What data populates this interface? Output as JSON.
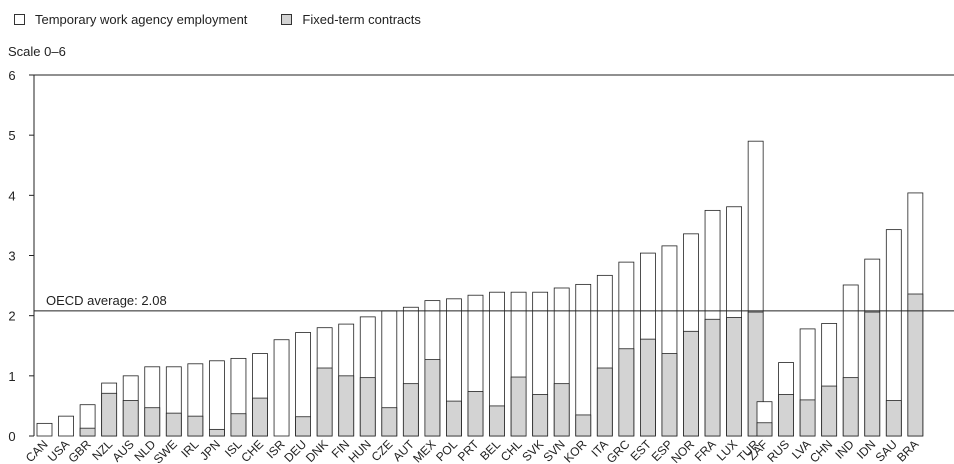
{
  "legend": {
    "agency_label": "Temporary work agency employment",
    "fixed_label": "Fixed-term contracts",
    "agency_color": "#ffffff",
    "fixed_color": "#d3d3d3"
  },
  "scale_label": "Scale 0–6",
  "reference_line": {
    "label": "OECD average: 2.08",
    "value": 2.08
  },
  "chart_data": {
    "type": "bar",
    "stacked": true,
    "ylim": [
      0,
      6
    ],
    "yticks": [
      0,
      1,
      2,
      3,
      4,
      5,
      6
    ],
    "groups": [
      {
        "categories": [
          "CAN",
          "USA",
          "GBR",
          "NZL",
          "AUS",
          "NLD",
          "SWE",
          "IRL",
          "JPN",
          "ISL",
          "CHE",
          "ISR",
          "DEU",
          "DNK",
          "FIN",
          "HUN",
          "CZE",
          "AUT",
          "MEX",
          "POL",
          "PRT",
          "BEL",
          "CHL",
          "SVK",
          "SVN",
          "KOR",
          "ITA",
          "GRC",
          "EST",
          "ESP",
          "NOR",
          "FRA",
          "LUX",
          "TUR"
        ],
        "totals": [
          0.21,
          0.33,
          0.52,
          0.88,
          1.0,
          1.15,
          1.15,
          1.2,
          1.25,
          1.29,
          1.37,
          1.6,
          1.72,
          1.8,
          1.86,
          1.98,
          2.08,
          2.14,
          2.25,
          2.28,
          2.34,
          2.39,
          2.39,
          2.39,
          2.46,
          2.52,
          2.67,
          2.89,
          3.04,
          3.16,
          3.36,
          3.75,
          3.81,
          4.9
        ]
      },
      {
        "categories": [
          "ZAF",
          "RUS",
          "LVA",
          "CHN",
          "IND",
          "IDN",
          "SAU",
          "BRA"
        ],
        "totals": [
          0.57,
          1.22,
          1.78,
          1.87,
          2.51,
          2.94,
          3.43,
          4.04
        ]
      }
    ],
    "series": [
      {
        "name": "Fixed-term contracts",
        "values": [
          0,
          0,
          0.13,
          0.71,
          0.59,
          0.47,
          0.38,
          0.33,
          0.11,
          0.37,
          0.63,
          0,
          0.32,
          1.13,
          1.0,
          0.97,
          0.47,
          0.87,
          1.27,
          0.58,
          0.74,
          0.5,
          0.98,
          0.69,
          0.87,
          0.35,
          1.13,
          1.45,
          1.61,
          1.37,
          1.74,
          1.94,
          1.97,
          2.06,
          0.22,
          0.69,
          0.6,
          0.83,
          0.97,
          2.06,
          0.59,
          2.36
        ]
      }
    ]
  }
}
